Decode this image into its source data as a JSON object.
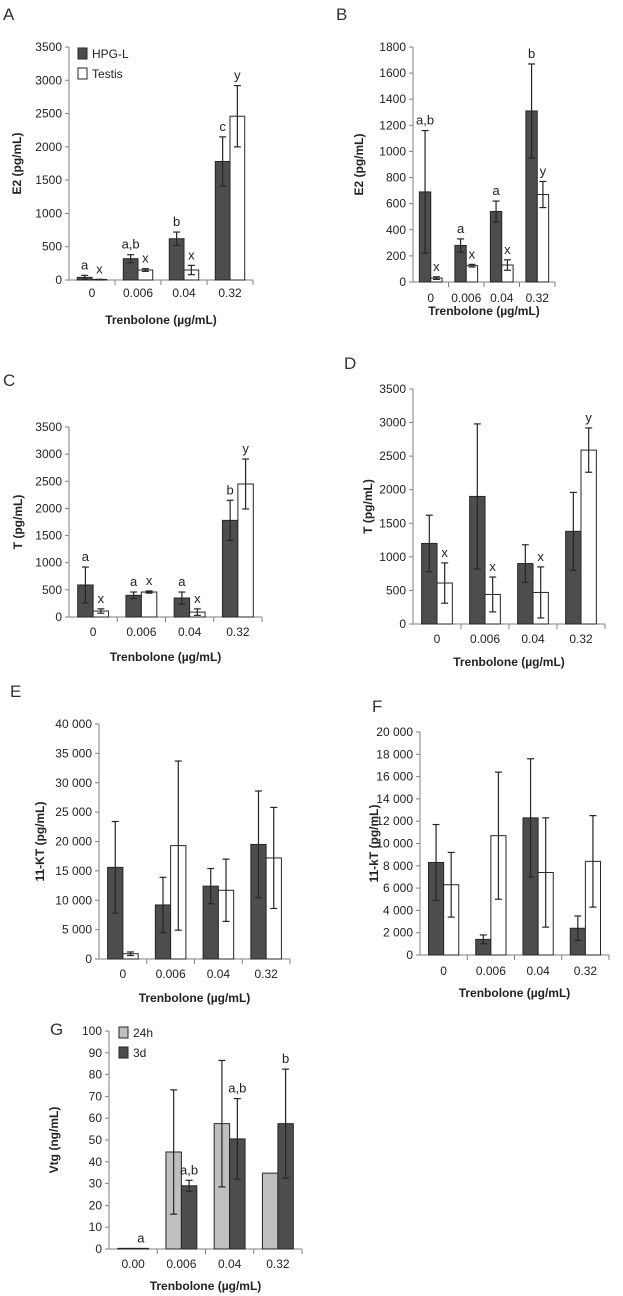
{
  "colors": {
    "dark": "#4d4d4d",
    "light": "#bfbfbf",
    "open": "#ffffff",
    "line": "#262626"
  },
  "chart_data": [
    {
      "panel": "A",
      "type": "bar",
      "categories": [
        "0",
        "0.006",
        "0.04",
        "0.32"
      ],
      "xlabel": "Trenbolone (µg/mL)",
      "ylabel": "E2 (pg/mL)",
      "ylim": [
        0,
        3500
      ],
      "yticks": [
        0,
        500,
        1000,
        1500,
        2000,
        2500,
        3000,
        3500
      ],
      "legend": "top-left",
      "series": [
        {
          "name": "HPG-L",
          "style": "dark",
          "values": [
            40,
            320,
            620,
            1780
          ],
          "errors": [
            30,
            60,
            100,
            370
          ],
          "labels": [
            "a",
            "a,b",
            "b",
            "c"
          ]
        },
        {
          "name": "Testis",
          "style": "open",
          "values": [
            5,
            150,
            150,
            2460
          ],
          "errors": [
            5,
            20,
            70,
            460
          ],
          "labels": [
            "x",
            "x",
            "x",
            "y"
          ]
        }
      ]
    },
    {
      "panel": "B",
      "type": "bar",
      "categories": [
        "0",
        "0.006",
        "0.04",
        "0.32"
      ],
      "xlabel": "Trenbolone (µg/mL)",
      "ylabel": "E2 (pg/mL)",
      "ylim": [
        0,
        1800
      ],
      "yticks": [
        0,
        200,
        400,
        600,
        800,
        1000,
        1200,
        1400,
        1600,
        1800
      ],
      "series": [
        {
          "style": "dark",
          "values": [
            690,
            280,
            540,
            1310
          ],
          "errors": [
            470,
            50,
            80,
            360
          ],
          "labels": [
            "a,b",
            "a",
            "a",
            "b"
          ]
        },
        {
          "style": "open",
          "values": [
            30,
            125,
            130,
            670
          ],
          "errors": [
            10,
            10,
            40,
            100
          ],
          "labels": [
            "x",
            "x",
            "x",
            "y"
          ]
        }
      ]
    },
    {
      "panel": "C",
      "type": "bar",
      "categories": [
        "0",
        "0.006",
        "0.04",
        "0.32"
      ],
      "xlabel": "Trenbolone (µg/mL)",
      "ylabel": "T (pg/mL)",
      "ylim": [
        0,
        3500
      ],
      "yticks": [
        0,
        500,
        1000,
        1500,
        2000,
        2500,
        3000,
        3500
      ],
      "series": [
        {
          "style": "dark",
          "values": [
            590,
            400,
            350,
            1780
          ],
          "errors": [
            330,
            60,
            110,
            370
          ],
          "labels": [
            "a",
            "a",
            "a",
            "b"
          ]
        },
        {
          "style": "open",
          "values": [
            110,
            460,
            90,
            2450
          ],
          "errors": [
            40,
            20,
            60,
            460
          ],
          "labels": [
            "x",
            "x",
            "x",
            "y"
          ]
        }
      ]
    },
    {
      "panel": "D",
      "type": "bar",
      "categories": [
        "0",
        "0.006",
        "0.04",
        "0.32"
      ],
      "xlabel": "Trenbolone (µg/mL)",
      "ylabel": "T (pg/mL)",
      "ylim": [
        0,
        3500
      ],
      "yticks": [
        0,
        500,
        1000,
        1500,
        2000,
        2500,
        3000,
        3500
      ],
      "series": [
        {
          "style": "dark",
          "values": [
            1200,
            1900,
            900,
            1380
          ],
          "errors": [
            420,
            1080,
            280,
            580
          ],
          "labels": [
            "",
            "",
            "",
            ""
          ]
        },
        {
          "style": "open",
          "values": [
            610,
            440,
            470,
            2590
          ],
          "errors": [
            300,
            260,
            380,
            330
          ],
          "labels": [
            "x",
            "x",
            "x",
            "y"
          ]
        }
      ]
    },
    {
      "panel": "E",
      "type": "bar",
      "categories": [
        "0",
        "0.006",
        "0.04",
        "0.32"
      ],
      "xlabel": "Trenbolone (µg/mL)",
      "ylabel": "11-KT (pg/mL)",
      "ylim": [
        0,
        40000
      ],
      "yticks": [
        0,
        5000,
        10000,
        15000,
        20000,
        25000,
        30000,
        35000,
        40000
      ],
      "tick_labels": [
        "0",
        "5 000",
        "10 000",
        "15 000",
        "20 000",
        "25 000",
        "30 000",
        "35 000",
        "40 000"
      ],
      "series": [
        {
          "style": "dark",
          "values": [
            15600,
            9200,
            12400,
            19500
          ],
          "errors": [
            7800,
            4700,
            3000,
            9100
          ],
          "labels": [
            "",
            "",
            "",
            ""
          ]
        },
        {
          "style": "open",
          "values": [
            900,
            19300,
            11700,
            17200
          ],
          "errors": [
            300,
            14400,
            5300,
            8600
          ],
          "labels": [
            "",
            "",
            "",
            ""
          ]
        }
      ]
    },
    {
      "panel": "F",
      "type": "bar",
      "categories": [
        "0",
        "0.006",
        "0.04",
        "0.32"
      ],
      "xlabel": "Trenbolone (µg/mL)",
      "ylabel": "11-kT (pg/mL)",
      "ylim": [
        0,
        20000
      ],
      "yticks": [
        0,
        2000,
        4000,
        6000,
        8000,
        10000,
        12000,
        14000,
        16000,
        18000,
        20000
      ],
      "tick_labels": [
        "0",
        "2 000",
        "4 000",
        "6 000",
        "8 000",
        "10 000",
        "12 000",
        "14 000",
        "16 000",
        "18 000",
        "20 000"
      ],
      "series": [
        {
          "style": "dark",
          "values": [
            8300,
            1400,
            12300,
            2400
          ],
          "errors": [
            3400,
            400,
            5300,
            1100
          ],
          "labels": [
            "",
            "",
            "",
            ""
          ]
        },
        {
          "style": "open",
          "values": [
            6300,
            10700,
            7400,
            8400
          ],
          "errors": [
            2900,
            5700,
            4900,
            4100
          ],
          "labels": [
            "",
            "",
            "",
            ""
          ]
        }
      ]
    },
    {
      "panel": "G",
      "type": "bar",
      "categories": [
        "0.00",
        "0.006",
        "0.04",
        "0.32"
      ],
      "xlabel": "Trenbolone (µg/mL)",
      "ylabel": "Vtg (ng/mL)",
      "ylim": [
        0,
        100
      ],
      "yticks": [
        0,
        10,
        20,
        30,
        40,
        50,
        60,
        70,
        80,
        90,
        100
      ],
      "legend": "top-left",
      "series": [
        {
          "name": "24h",
          "style": "light",
          "values": [
            0.3,
            44.5,
            57.5,
            34.8
          ],
          "errors": [
            0,
            28.5,
            29,
            0
          ],
          "labels": [
            "",
            "",
            "",
            ""
          ]
        },
        {
          "name": "3d",
          "style": "dark",
          "values": [
            0.3,
            29,
            50.5,
            57.5
          ],
          "errors": [
            0,
            2.5,
            18.5,
            25
          ],
          "labels": [
            "a",
            "a,b",
            "a,b",
            "b"
          ]
        }
      ]
    }
  ]
}
